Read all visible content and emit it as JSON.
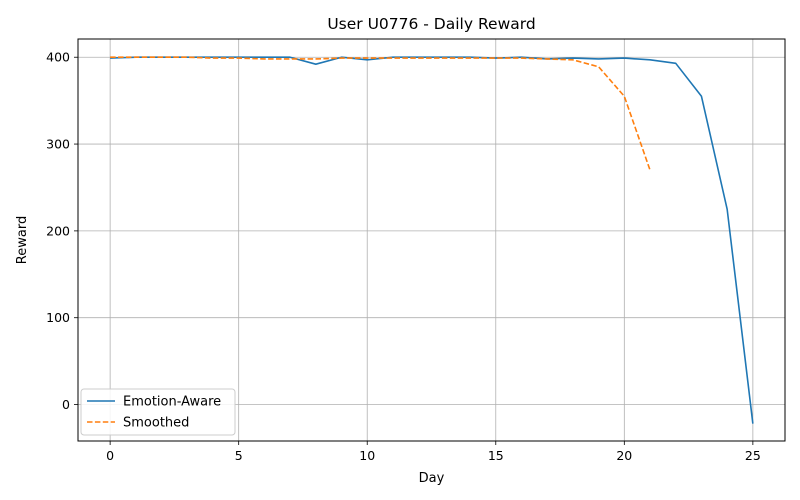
{
  "chart_data": {
    "type": "line",
    "title": "User U0776 - Daily Reward",
    "xlabel": "Day",
    "ylabel": "Reward",
    "xlim": [
      -1.25,
      26.25
    ],
    "ylim": [
      -42,
      421
    ],
    "xticks": [
      0,
      5,
      10,
      15,
      20,
      25
    ],
    "yticks": [
      0,
      100,
      200,
      300,
      400
    ],
    "grid": true,
    "legend_position": "lower-left",
    "series": [
      {
        "name": "Emotion-Aware",
        "color": "#1f77b4",
        "style": "solid",
        "x": [
          0,
          1,
          2,
          3,
          4,
          5,
          6,
          7,
          8,
          9,
          10,
          11,
          12,
          13,
          14,
          15,
          16,
          17,
          18,
          19,
          20,
          21,
          22,
          23,
          24,
          25
        ],
        "y": [
          399,
          400,
          400,
          400,
          400,
          400,
          400,
          400,
          392,
          400,
          397,
          400,
          400,
          400,
          400,
          399,
          400,
          398,
          399,
          398,
          399,
          397,
          393,
          355,
          225,
          -22
        ]
      },
      {
        "name": "Smoothed",
        "color": "#ff7f0e",
        "style": "dashed",
        "x": [
          0,
          1,
          2,
          3,
          4,
          5,
          6,
          7,
          8,
          9,
          10,
          11,
          12,
          13,
          14,
          15,
          16,
          17,
          18,
          19,
          20,
          21
        ],
        "y": [
          400,
          400,
          400,
          400,
          399,
          399,
          398,
          398,
          398,
          399,
          399,
          399,
          399,
          399,
          399,
          399,
          399,
          398,
          397,
          389,
          355,
          270
        ]
      }
    ]
  }
}
